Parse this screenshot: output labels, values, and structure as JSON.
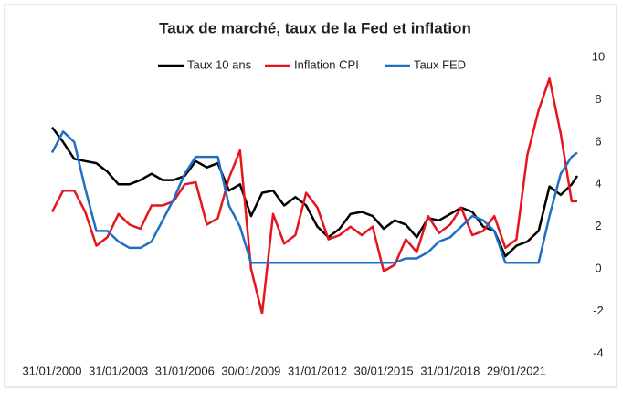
{
  "chart_data": {
    "type": "line",
    "title": "Taux de marché, taux de la Fed et inflation",
    "legend": "top",
    "x": [
      "2000-01-31",
      "2000-07-31",
      "2001-01-31",
      "2001-07-31",
      "2002-01-31",
      "2002-07-31",
      "2003-01-31",
      "2003-07-31",
      "2004-01-31",
      "2004-07-31",
      "2005-01-31",
      "2005-07-31",
      "2006-01-31",
      "2006-07-31",
      "2007-01-31",
      "2007-07-31",
      "2008-01-31",
      "2008-07-31",
      "2009-01-30",
      "2009-07-31",
      "2010-01-29",
      "2010-07-30",
      "2011-01-31",
      "2011-07-29",
      "2012-01-31",
      "2012-07-31",
      "2013-01-31",
      "2013-07-31",
      "2014-01-31",
      "2014-07-31",
      "2015-01-30",
      "2015-07-31",
      "2016-01-29",
      "2016-07-29",
      "2017-01-31",
      "2017-07-31",
      "2018-01-31",
      "2018-07-31",
      "2019-01-31",
      "2019-07-31",
      "2020-01-31",
      "2020-07-31",
      "2021-01-29",
      "2021-07-30",
      "2022-01-31",
      "2022-07-29",
      "2023-01-31",
      "2023-07-31",
      "2023-10-31"
    ],
    "series": [
      {
        "name": "Taux 10 ans",
        "color": "#000000",
        "values": [
          6.7,
          6.0,
          5.2,
          5.1,
          5.0,
          4.6,
          4.0,
          4.0,
          4.2,
          4.5,
          4.2,
          4.2,
          4.4,
          5.1,
          4.8,
          5.0,
          3.7,
          4.0,
          2.5,
          3.6,
          3.7,
          3.0,
          3.4,
          3.0,
          2.0,
          1.5,
          1.9,
          2.6,
          2.7,
          2.5,
          1.9,
          2.3,
          2.1,
          1.5,
          2.4,
          2.3,
          2.6,
          2.9,
          2.7,
          2.0,
          1.8,
          0.6,
          1.1,
          1.3,
          1.8,
          3.9,
          3.5,
          4.0,
          4.4
        ]
      },
      {
        "name": "Inflation CPI",
        "color": "#e8141c",
        "values": [
          2.7,
          3.7,
          3.7,
          2.7,
          1.1,
          1.5,
          2.6,
          2.1,
          1.9,
          3.0,
          3.0,
          3.2,
          4.0,
          4.1,
          2.1,
          2.4,
          4.3,
          5.6,
          0.0,
          -2.1,
          2.6,
          1.2,
          1.6,
          3.6,
          2.9,
          1.4,
          1.6,
          2.0,
          1.6,
          2.0,
          -0.1,
          0.2,
          1.4,
          0.8,
          2.5,
          1.7,
          2.1,
          2.9,
          1.6,
          1.8,
          2.5,
          1.0,
          1.4,
          5.4,
          7.5,
          9.0,
          6.4,
          3.2,
          3.2
        ]
      },
      {
        "name": "Taux FED",
        "color": "#1f6fc5",
        "values": [
          5.5,
          6.5,
          6.0,
          3.8,
          1.8,
          1.8,
          1.3,
          1.0,
          1.0,
          1.3,
          2.3,
          3.3,
          4.5,
          5.3,
          5.3,
          5.3,
          3.0,
          2.0,
          0.3,
          0.3,
          0.3,
          0.3,
          0.3,
          0.3,
          0.3,
          0.3,
          0.3,
          0.3,
          0.3,
          0.3,
          0.3,
          0.3,
          0.5,
          0.5,
          0.8,
          1.3,
          1.5,
          2.0,
          2.5,
          2.3,
          1.8,
          0.3,
          0.3,
          0.3,
          0.3,
          2.5,
          4.5,
          5.3,
          5.5
        ]
      }
    ],
    "xticks": [
      {
        "value": "2000-01-31",
        "label": "31/01/2000"
      },
      {
        "value": "2003-01-31",
        "label": "31/01/2003"
      },
      {
        "value": "2006-01-31",
        "label": "31/01/2006"
      },
      {
        "value": "2009-01-30",
        "label": "30/01/2009"
      },
      {
        "value": "2012-01-31",
        "label": "31/01/2012"
      },
      {
        "value": "2015-01-30",
        "label": "30/01/2015"
      },
      {
        "value": "2018-01-31",
        "label": "31/01/2018"
      },
      {
        "value": "2021-01-29",
        "label": "29/01/2021"
      }
    ],
    "ylim": [
      -4,
      10
    ],
    "yticks": [
      -4,
      -2,
      0,
      2,
      4,
      6,
      8,
      10
    ],
    "grid": false
  }
}
